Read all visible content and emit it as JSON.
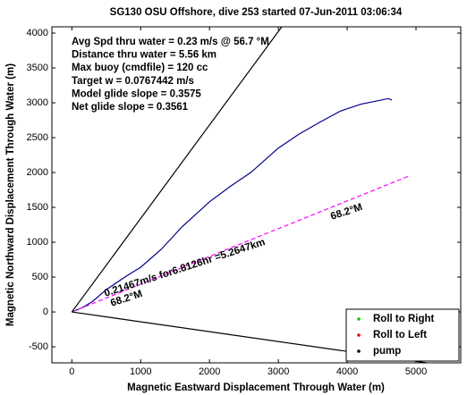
{
  "chart_data": {
    "type": "line",
    "title": "SG130 OSU Offshore, dive 253 started 07-Jun-2011 03:06:34",
    "xlabel": "Magnetic Eastward Displacement Through Water (m)",
    "ylabel": "Magnetic Northward Displacement Through Water (m)",
    "xlim": [
      -290,
      5650
    ],
    "ylim": [
      -730,
      4090
    ],
    "xticks": [
      0,
      1000,
      2000,
      3000,
      4000,
      5000
    ],
    "yticks": [
      -500,
      0,
      500,
      1000,
      1500,
      2000,
      2500,
      3000,
      3500,
      4000
    ],
    "annotations": [
      "Avg Spd thru water  =  0.23 m/s @  56.7 °M",
      "Distance thru water  =  5.56 km",
      "Max buoy (cmdfile)  = 120 cc",
      "Target w         = 0.0767442 m/s",
      "Model glide slope    = 0.3575",
      "Net glide slope        = 0.3561"
    ],
    "line_labels": [
      "0.21467m/s for6.8126hr =5.2647km",
      "68.2°M",
      "68.2°M"
    ],
    "lines": [
      {
        "color": "#00008b",
        "style": "solid",
        "x": [
          0,
          150,
          300,
          500,
          800,
          1000,
          1300,
          1600,
          2000,
          2300,
          2600,
          3000,
          3300,
          3600,
          3900,
          4200,
          4400,
          4600,
          4650
        ],
        "y": [
          0,
          60,
          150,
          320,
          520,
          640,
          900,
          1220,
          1580,
          1800,
          2000,
          2350,
          2550,
          2720,
          2880,
          2980,
          3020,
          3060,
          3040
        ]
      },
      {
        "color": "#ff00ff",
        "style": "dashed",
        "x": [
          0,
          4900
        ],
        "y": [
          0,
          1950
        ]
      },
      {
        "color": "#000000",
        "style": "solid",
        "x": [
          0,
          3050
        ],
        "y": [
          0,
          4090
        ]
      },
      {
        "color": "#000000",
        "style": "solid",
        "x": [
          0,
          5300
        ],
        "y": [
          0,
          -750
        ]
      }
    ],
    "legend": {
      "location": "southeast",
      "entries": [
        {
          "name": "Roll to Right",
          "color": "#00cc00"
        },
        {
          "name": "Roll to Left",
          "color": "#ff0000"
        },
        {
          "name": "pump",
          "color": "#000000"
        }
      ]
    }
  }
}
